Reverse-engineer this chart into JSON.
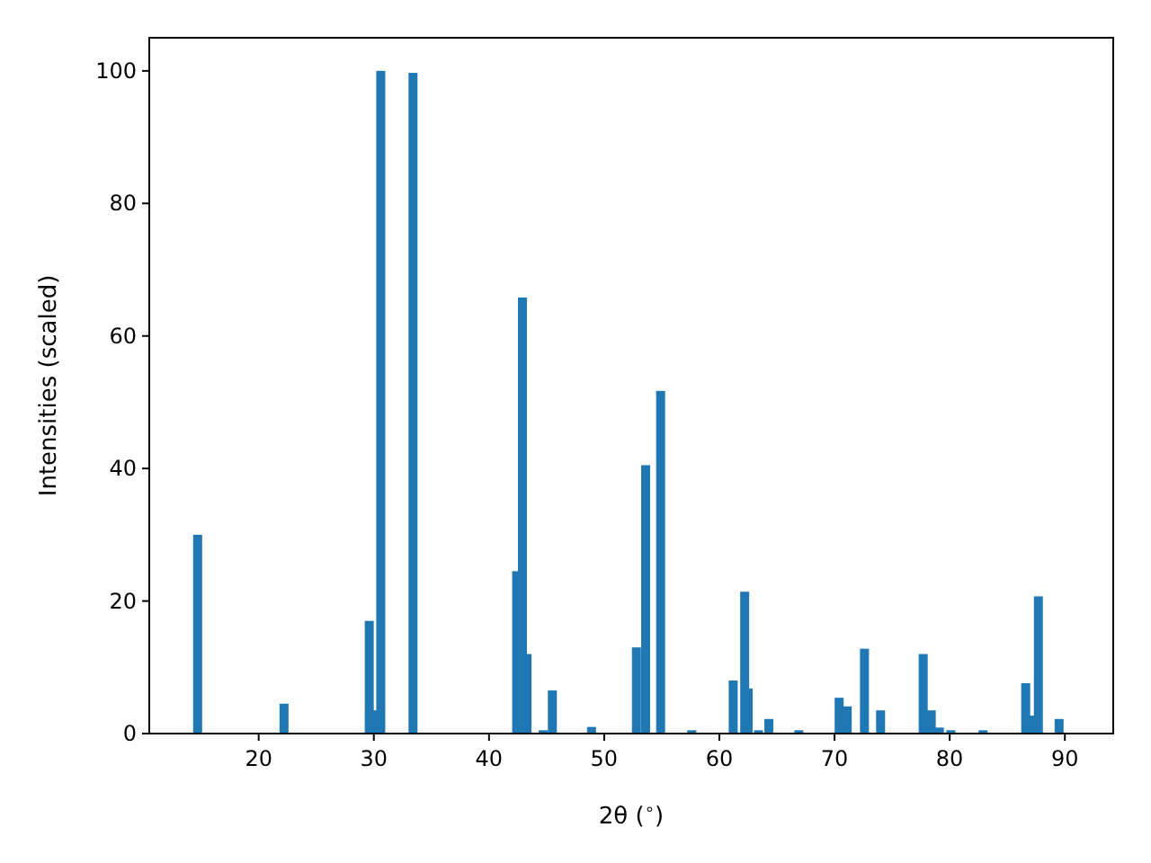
{
  "chart_data": {
    "type": "bar",
    "xlabel": "2θ ($^{∘}$)",
    "ylabel": "Intensities (scaled)",
    "color": "#1f77b4",
    "x": [
      14.7,
      22.2,
      29.6,
      30.0,
      30.6,
      33.4,
      42.4,
      42.9,
      43.3,
      44.7,
      45.5,
      48.9,
      52.8,
      53.6,
      54.9,
      57.6,
      61.2,
      62.2,
      62.5,
      63.4,
      64.3,
      66.9,
      70.4,
      71.1,
      72.6,
      74.0,
      77.7,
      78.4,
      79.1,
      80.1,
      82.9,
      86.6,
      87.0,
      87.7,
      89.5
    ],
    "values": [
      30,
      4.5,
      17,
      3.5,
      100,
      99.7,
      24.5,
      65.8,
      12,
      0.5,
      6.5,
      1,
      13,
      40.5,
      51.7,
      0.5,
      8,
      21.4,
      6.8,
      0.5,
      2.2,
      0.5,
      5.4,
      4.1,
      12.8,
      3.5,
      12,
      3.5,
      0.9,
      0.5,
      0.5,
      7.6,
      2.7,
      20.7,
      2.2
    ],
    "xlim": [
      10.5,
      94.2
    ],
    "ylim": [
      0,
      105
    ],
    "xticks": [
      20,
      30,
      40,
      50,
      60,
      70,
      80,
      90
    ],
    "yticks": [
      0,
      20,
      40,
      60,
      80,
      100
    ],
    "grid": false
  }
}
